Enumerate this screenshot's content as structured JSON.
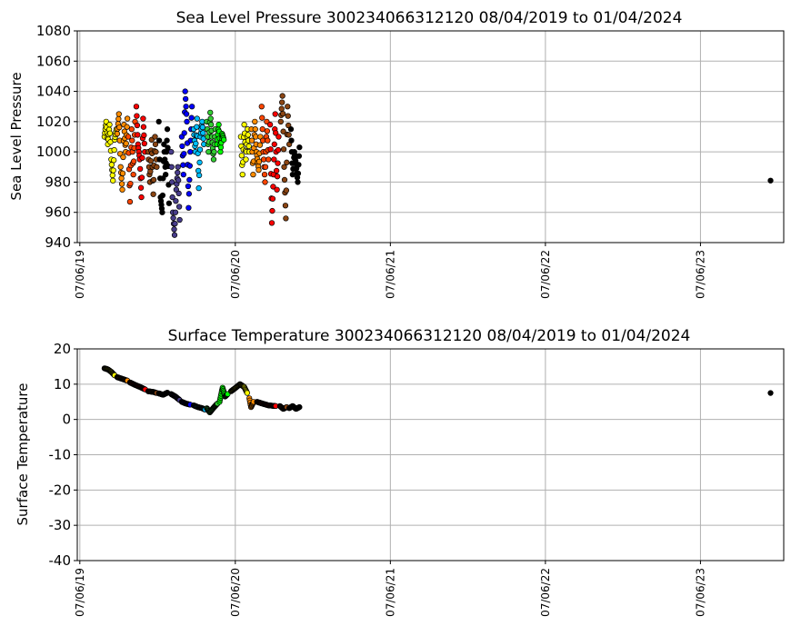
{
  "chart_data": [
    {
      "type": "scatter",
      "title": "Sea Level Pressure 300234066312120  08/04/2019 to 01/04/2024",
      "xlabel": "",
      "ylabel": "Sea Level Pressure",
      "x_range": [
        "2019-06-01",
        "2023-12-20"
      ],
      "ylim": [
        940,
        1080
      ],
      "y_ticks": [
        940,
        960,
        980,
        1000,
        1020,
        1040,
        1060,
        1080
      ],
      "x_ticks": [
        "07/06/19",
        "07/06/20",
        "07/06/21",
        "07/06/22",
        "07/06/23"
      ],
      "x_tick_dates": [
        "2019-06-07",
        "2020-06-07",
        "2021-06-07",
        "2022-06-07",
        "2023-06-07"
      ],
      "grid": true,
      "series": [
        {
          "color": "#ffff00",
          "points": [
            [
              "2019-08-04",
              1010
            ],
            [
              "2019-08-08",
              1020
            ],
            [
              "2019-08-12",
              1005
            ],
            [
              "2019-08-16",
              1018
            ],
            [
              "2019-08-20",
              995
            ],
            [
              "2019-08-24",
              981
            ],
            [
              "2019-08-28",
              1008
            ],
            [
              "2019-09-01",
              1015
            ]
          ]
        },
        {
          "color": "#ff8c00",
          "points": [
            [
              "2019-09-03",
              1012
            ],
            [
              "2019-09-07",
              1025
            ],
            [
              "2019-09-11",
              990
            ],
            [
              "2019-09-15",
              975
            ],
            [
              "2019-09-19",
              1018
            ],
            [
              "2019-09-23",
              1000
            ],
            [
              "2019-09-27",
              1022
            ]
          ]
        },
        {
          "color": "#ff4500",
          "points": [
            [
              "2019-09-29",
              1010
            ],
            [
              "2019-10-03",
              967
            ],
            [
              "2019-10-07",
              1015
            ],
            [
              "2019-10-11",
              985
            ],
            [
              "2019-10-15",
              1020
            ]
          ]
        },
        {
          "color": "#ff0000",
          "points": [
            [
              "2019-10-18",
              1030
            ],
            [
              "2019-10-22",
              1005
            ],
            [
              "2019-10-26",
              995
            ],
            [
              "2019-10-30",
              970
            ],
            [
              "2019-11-03",
              1022
            ],
            [
              "2019-11-07",
              1000
            ]
          ]
        },
        {
          "color": "#8b4513",
          "points": [
            [
              "2019-11-15",
              1000
            ],
            [
              "2019-11-19",
              980
            ],
            [
              "2019-11-23",
              1008
            ],
            [
              "2019-11-27",
              972
            ],
            [
              "2019-12-01",
              1010
            ],
            [
              "2019-12-05",
              990
            ]
          ]
        },
        {
          "color": "#000000",
          "points": [
            [
              "2019-12-10",
              1020
            ],
            [
              "2019-12-14",
              970
            ],
            [
              "2019-12-18",
              960
            ],
            [
              "2019-12-22",
              1005
            ],
            [
              "2019-12-26",
              985
            ],
            [
              "2019-12-30",
              1015
            ],
            [
              "2020-01-03",
              966
            ]
          ]
        },
        {
          "color": "#483d8b",
          "points": [
            [
              "2020-01-08",
              1000
            ],
            [
              "2020-01-12",
              960
            ],
            [
              "2020-01-16",
              945
            ],
            [
              "2020-01-20",
              975
            ],
            [
              "2020-01-24",
              990
            ],
            [
              "2020-01-28",
              955
            ]
          ]
        },
        {
          "color": "#0000ff",
          "points": [
            [
              "2020-02-02",
              1010
            ],
            [
              "2020-02-06",
              985
            ],
            [
              "2020-02-10",
              1040
            ],
            [
              "2020-02-14",
              1020
            ],
            [
              "2020-02-18",
              963
            ],
            [
              "2020-02-22",
              1000
            ],
            [
              "2020-02-26",
              1030
            ]
          ]
        },
        {
          "color": "#00bfff",
          "points": [
            [
              "2020-03-01",
              1015
            ],
            [
              "2020-03-05",
              1000
            ],
            [
              "2020-03-09",
              1022
            ],
            [
              "2020-03-13",
              976
            ],
            [
              "2020-03-17",
              1010
            ],
            [
              "2020-03-21",
              1020
            ],
            [
              "2020-03-25",
              1005
            ]
          ]
        },
        {
          "color": "#32cd32",
          "points": [
            [
              "2020-04-01",
              1020
            ],
            [
              "2020-04-05",
              1000
            ],
            [
              "2020-04-09",
              1026
            ],
            [
              "2020-04-13",
              1010
            ],
            [
              "2020-04-17",
              995
            ],
            [
              "2020-04-21",
              1015
            ]
          ]
        },
        {
          "color": "#00ff00",
          "points": [
            [
              "2020-04-25",
              1005
            ],
            [
              "2020-04-29",
              1018
            ],
            [
              "2020-05-03",
              1000
            ],
            [
              "2020-05-07",
              1012
            ],
            [
              "2020-05-11",
              1008
            ]
          ]
        },
        {
          "color": "#ffff00",
          "points": [
            [
              "2020-06-20",
              1010
            ],
            [
              "2020-06-24",
              985
            ],
            [
              "2020-06-28",
              1018
            ],
            [
              "2020-07-02",
              995
            ],
            [
              "2020-07-06",
              1015
            ],
            [
              "2020-07-10",
              1000
            ]
          ]
        },
        {
          "color": "#ff8c00",
          "points": [
            [
              "2020-07-15",
              1015
            ],
            [
              "2020-07-19",
              985
            ],
            [
              "2020-07-23",
              1020
            ],
            [
              "2020-07-27",
              1000
            ],
            [
              "2020-08-01",
              988
            ],
            [
              "2020-08-05",
              1010
            ]
          ]
        },
        {
          "color": "#ff4500",
          "points": [
            [
              "2020-08-08",
              1030
            ],
            [
              "2020-08-12",
              1000
            ],
            [
              "2020-08-16",
              980
            ],
            [
              "2020-08-20",
              1020
            ],
            [
              "2020-08-24",
              995
            ]
          ]
        },
        {
          "color": "#ff0000",
          "points": [
            [
              "2020-08-28",
              1018
            ],
            [
              "2020-09-01",
              953
            ],
            [
              "2020-09-05",
              985
            ],
            [
              "2020-09-09",
              1025
            ],
            [
              "2020-09-13",
              975
            ],
            [
              "2020-09-17",
              1010
            ]
          ]
        },
        {
          "color": "#8b4513",
          "points": [
            [
              "2020-09-22",
              1020
            ],
            [
              "2020-09-26",
              1037
            ],
            [
              "2020-09-30",
              990
            ],
            [
              "2020-10-04",
              956
            ],
            [
              "2020-10-08",
              1030
            ],
            [
              "2020-10-12",
              1005
            ]
          ]
        },
        {
          "color": "#000000",
          "points": [
            [
              "2020-10-16",
              1015
            ],
            [
              "2020-10-20",
              985
            ],
            [
              "2020-10-24",
              1000
            ],
            [
              "2020-10-28",
              992
            ],
            [
              "2020-11-01",
              980
            ],
            [
              "2020-11-05",
              1003
            ],
            [
              "2023-11-19",
              981
            ]
          ]
        }
      ]
    },
    {
      "type": "scatter",
      "title": "Surface Temperature 300234066312120  08/04/2019 to 01/04/2024",
      "xlabel": "",
      "ylabel": "Surface Temperature",
      "x_range": [
        "2019-06-01",
        "2023-12-20"
      ],
      "ylim": [
        -40,
        20
      ],
      "y_ticks": [
        -40,
        -30,
        -20,
        -10,
        0,
        10,
        20
      ],
      "x_ticks": [
        "07/06/19",
        "07/06/20",
        "07/06/21",
        "07/06/22",
        "07/06/23"
      ],
      "x_tick_dates": [
        "2019-06-07",
        "2020-06-07",
        "2021-06-07",
        "2022-06-07",
        "2023-06-07"
      ],
      "grid": true,
      "series": [
        {
          "color": "#ffff00",
          "points": [
            [
              "2019-08-04",
              14.5
            ],
            [
              "2019-08-12",
              14.2
            ],
            [
              "2019-08-20",
              13.5
            ],
            [
              "2019-08-28",
              12.5
            ]
          ]
        },
        {
          "color": "#ff8c00",
          "points": [
            [
              "2019-09-03",
              12.0
            ],
            [
              "2019-09-15",
              11.5
            ],
            [
              "2019-09-27",
              11.0
            ]
          ]
        },
        {
          "color": "#ff0000",
          "points": [
            [
              "2019-10-03",
              10.5
            ],
            [
              "2019-10-15",
              9.8
            ],
            [
              "2019-10-27",
              9.2
            ],
            [
              "2019-11-08",
              8.5
            ]
          ]
        },
        {
          "color": "#8b4513",
          "points": [
            [
              "2019-11-15",
              8.0
            ],
            [
              "2019-11-27",
              7.8
            ],
            [
              "2019-12-05",
              7.5
            ]
          ]
        },
        {
          "color": "#000000",
          "points": [
            [
              "2019-12-10",
              7.4
            ],
            [
              "2019-12-20",
              7.0
            ],
            [
              "2019-12-30",
              7.6
            ]
          ]
        },
        {
          "color": "#483d8b",
          "points": [
            [
              "2020-01-08",
              7.2
            ],
            [
              "2020-01-18",
              6.5
            ],
            [
              "2020-01-28",
              5.5
            ]
          ]
        },
        {
          "color": "#0000ff",
          "points": [
            [
              "2020-02-02",
              5.0
            ],
            [
              "2020-02-12",
              4.5
            ],
            [
              "2020-02-22",
              4.2
            ]
          ]
        },
        {
          "color": "#00bfff",
          "points": [
            [
              "2020-03-01",
              4.0
            ],
            [
              "2020-03-11",
              3.5
            ],
            [
              "2020-03-21",
              3.2
            ],
            [
              "2020-03-28",
              2.8
            ]
          ]
        },
        {
          "color": "#32cd32",
          "points": [
            [
              "2020-04-01",
              3.2
            ],
            [
              "2020-04-08",
              2.0
            ],
            [
              "2020-04-18",
              3.5
            ],
            [
              "2020-04-26",
              4.5
            ]
          ]
        },
        {
          "color": "#00ff00",
          "points": [
            [
              "2020-05-01",
              5.0
            ],
            [
              "2020-05-08",
              9.0
            ],
            [
              "2020-05-14",
              6.5
            ],
            [
              "2020-05-20",
              7.2
            ]
          ]
        },
        {
          "color": "#ffff00",
          "points": [
            [
              "2020-05-28",
              8.0
            ],
            [
              "2020-06-08",
              9.0
            ],
            [
              "2020-06-18",
              10.0
            ],
            [
              "2020-06-28",
              9.2
            ],
            [
              "2020-07-05",
              7.5
            ]
          ]
        },
        {
          "color": "#ff8c00",
          "points": [
            [
              "2020-07-10",
              6.0
            ],
            [
              "2020-07-14",
              3.5
            ],
            [
              "2020-07-20",
              5.0
            ]
          ]
        },
        {
          "color": "#ff0000",
          "points": [
            [
              "2020-07-28",
              5.0
            ],
            [
              "2020-08-10",
              4.5
            ],
            [
              "2020-08-24",
              4.0
            ],
            [
              "2020-09-10",
              3.8
            ]
          ]
        },
        {
          "color": "#8b4513",
          "points": [
            [
              "2020-09-20",
              3.8
            ],
            [
              "2020-09-28",
              3.0
            ],
            [
              "2020-10-06",
              3.5
            ]
          ]
        },
        {
          "color": "#000000",
          "points": [
            [
              "2020-10-12",
              3.2
            ],
            [
              "2020-10-20",
              3.8
            ],
            [
              "2020-10-28",
              3.0
            ],
            [
              "2020-11-05",
              3.5
            ],
            [
              "2023-11-19",
              7.5
            ]
          ]
        }
      ]
    }
  ]
}
